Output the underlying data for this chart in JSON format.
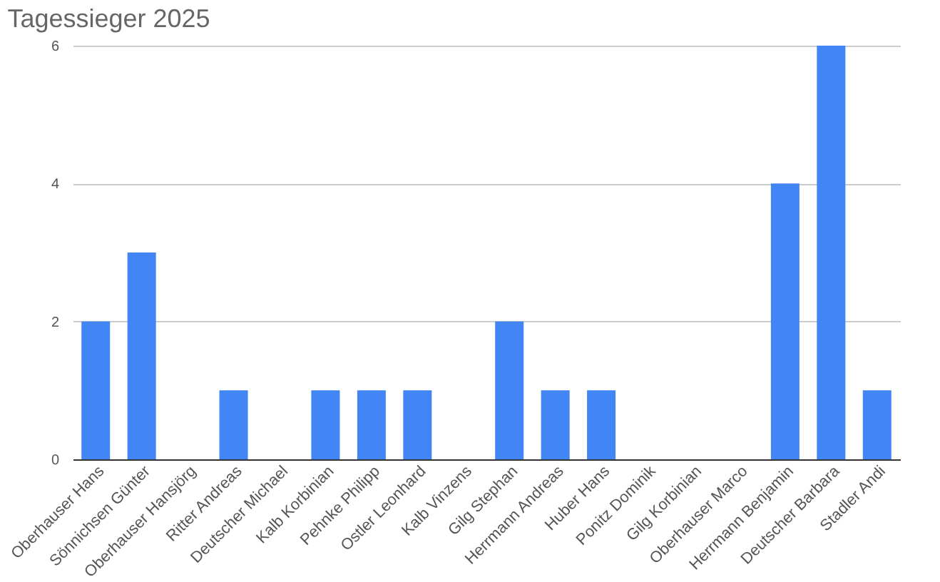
{
  "chart_data": {
    "type": "bar",
    "title": "Tagessieger 2025",
    "categories": [
      "Oberhauser Hans",
      "Sönnichsen Günter",
      "Oberhauser Hansjörg",
      "Ritter Andreas",
      "Deutscher Michael",
      "Kalb Korbinian",
      "Pehnke Philipp",
      "Ostler Leonhard",
      "Kalb Vinzens",
      "Gilg Stephan",
      "Herrmann Andreas",
      "Huber Hans",
      "Ponitz Dominik",
      "Gilg Korbinian",
      "Oberhauser Marco",
      "Herrmann Benjamin",
      "Deutscher Barbara",
      "Stadler Andi"
    ],
    "values": [
      2,
      3,
      0,
      1,
      0,
      1,
      1,
      1,
      0,
      2,
      1,
      1,
      0,
      0,
      0,
      4,
      6,
      1
    ],
    "color": "#4285f4",
    "ylim": [
      0,
      6
    ],
    "yticks": [
      0,
      2,
      4,
      6
    ],
    "grid": "y"
  }
}
